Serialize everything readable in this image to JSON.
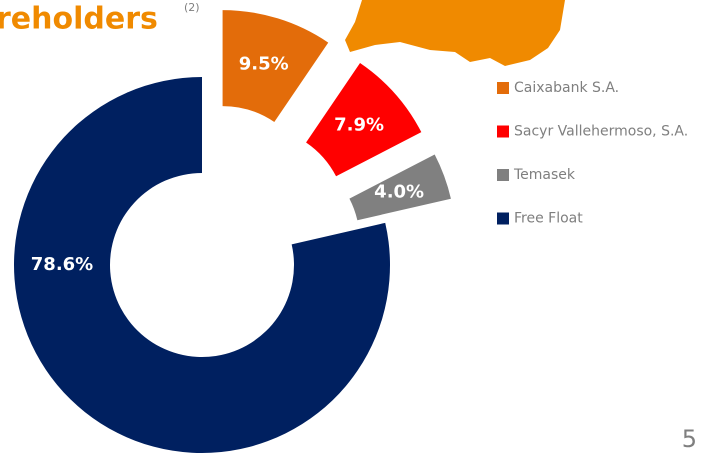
{
  "title": "reholders",
  "title_note": "(2)",
  "page_number": "5",
  "chart_data": {
    "type": "donut",
    "categories": [
      "Caixabank S.A.",
      "Sacyr Vallehermoso, S.A.",
      "Temasek",
      "Free Float"
    ],
    "values": [
      9.5,
      7.9,
      4.0,
      78.6
    ],
    "value_labels": [
      "9.5%",
      "7.9%",
      "4.0%",
      "78.6%"
    ],
    "colors": [
      "#e36c0a",
      "#ff0000",
      "#808080",
      "#002060"
    ],
    "exploded": [
      true,
      true,
      true,
      false
    ],
    "legend": "right"
  }
}
